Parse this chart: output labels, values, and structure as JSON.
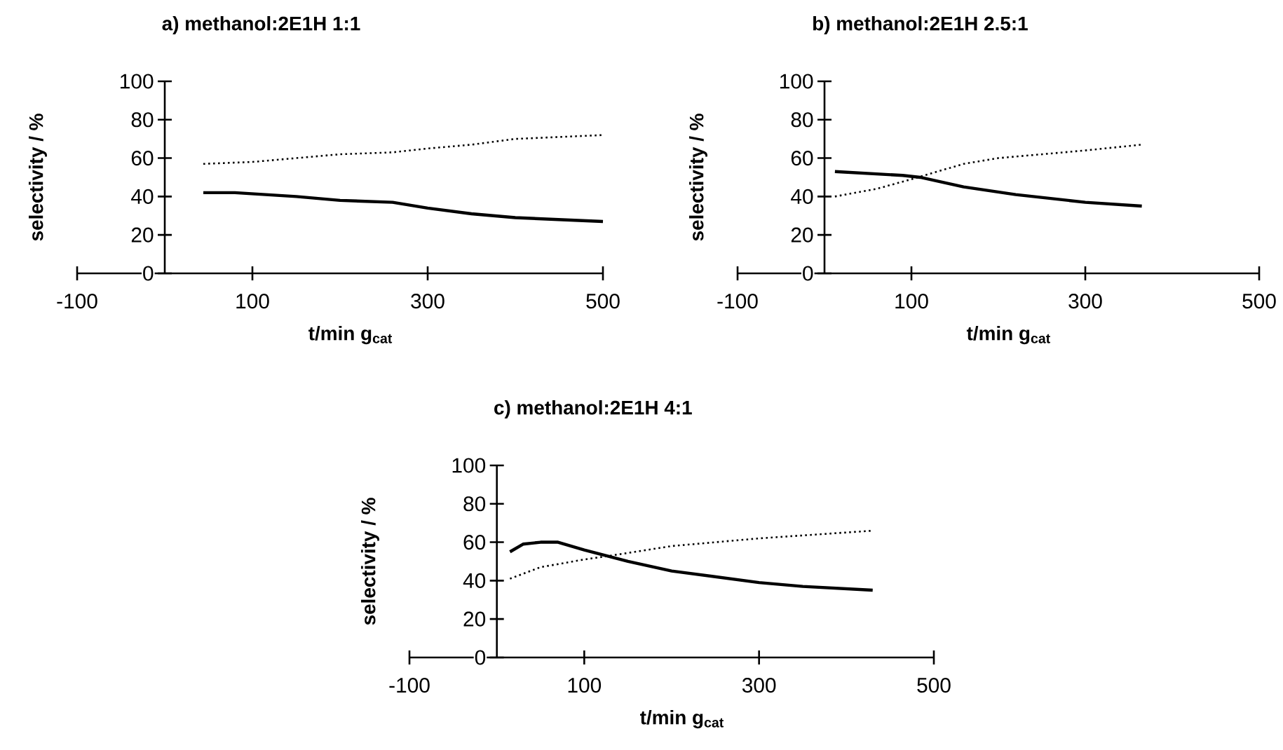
{
  "chart_data": [
    {
      "type": "line",
      "title": "a) methanol:2E1H 1:1",
      "xlabel": "t/min g$_{cat}$",
      "ylabel": "selectivity / %",
      "xlim": [
        -100,
        500
      ],
      "xticks": [
        -100,
        100,
        300,
        500
      ],
      "ylim": [
        0,
        100
      ],
      "yticks": [
        0,
        20,
        40,
        60,
        80,
        100
      ],
      "series": [
        {
          "color": "#000000",
          "line_style": "solid",
          "x": [
            44,
            80,
            150,
            200,
            260,
            300,
            350,
            400,
            450,
            500
          ],
          "values": [
            42,
            42,
            40,
            38,
            37,
            34,
            31,
            29,
            28,
            27
          ]
        },
        {
          "color": "#000000",
          "line_style": "dotted",
          "x": [
            44,
            100,
            200,
            260,
            300,
            350,
            400,
            450,
            500
          ],
          "values": [
            57,
            58,
            62,
            63,
            65,
            67,
            70,
            71,
            72
          ]
        }
      ]
    },
    {
      "type": "line",
      "title": "b) methanol:2E1H 2.5:1",
      "xlabel": "t/min g$_{cat}$",
      "ylabel": "selectivity / %",
      "xlim": [
        -100,
        500
      ],
      "xticks": [
        -100,
        100,
        300,
        500
      ],
      "ylim": [
        0,
        100
      ],
      "yticks": [
        0,
        20,
        40,
        60,
        80,
        100
      ],
      "series": [
        {
          "color": "#000000",
          "line_style": "solid",
          "x": [
            12,
            90,
            110,
            160,
            220,
            300,
            365
          ],
          "values": [
            53,
            51,
            50,
            45,
            41,
            37,
            35
          ]
        },
        {
          "color": "#000000",
          "line_style": "dotted",
          "x": [
            12,
            60,
            100,
            160,
            200,
            300,
            365
          ],
          "values": [
            40,
            44,
            49,
            57,
            60,
            64,
            67
          ]
        }
      ]
    },
    {
      "type": "line",
      "title": "c) methanol:2E1H 4:1",
      "xlabel": "t/min g$_{cat}$",
      "ylabel": "selectivity / %",
      "xlim": [
        -100,
        500
      ],
      "xticks": [
        -100,
        100,
        300,
        500
      ],
      "ylim": [
        0,
        100
      ],
      "yticks": [
        0,
        20,
        40,
        60,
        80,
        100
      ],
      "series": [
        {
          "color": "#000000",
          "line_style": "solid",
          "x": [
            15,
            30,
            50,
            70,
            100,
            150,
            200,
            300,
            350,
            430
          ],
          "values": [
            55,
            59,
            60,
            60,
            56,
            50,
            45,
            39,
            37,
            35
          ]
        },
        {
          "color": "#000000",
          "line_style": "dotted",
          "x": [
            15,
            50,
            100,
            130,
            200,
            300,
            430
          ],
          "values": [
            41,
            47,
            51,
            53,
            58,
            62,
            66
          ]
        }
      ]
    }
  ]
}
